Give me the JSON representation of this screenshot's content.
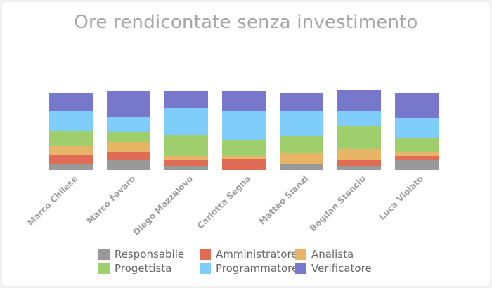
{
  "chart_data": {
    "type": "bar",
    "stacked": true,
    "title": "Ore rendicontate senza investimento",
    "categories": [
      "Marco Chilese",
      "Marco Favaro",
      "Diego Mazzalovo",
      "Carlotta Segna",
      "Matteo Slanzi",
      "Bogdan Stanciu",
      "Luca Violato"
    ],
    "series": [
      {
        "name": "Responsabile",
        "color": "#999999",
        "values": [
          4,
          7,
          3,
          0,
          4,
          3,
          7
        ]
      },
      {
        "name": "Amministratore",
        "color": "#e06c55",
        "values": [
          7,
          6,
          4,
          8,
          0,
          4,
          3
        ]
      },
      {
        "name": "Analista",
        "color": "#e8b465",
        "values": [
          6,
          7,
          3,
          2,
          8,
          8,
          3
        ]
      },
      {
        "name": "Progettista",
        "color": "#9fce6c",
        "values": [
          11,
          7,
          15,
          11,
          12,
          16,
          10
        ]
      },
      {
        "name": "Programmatore",
        "color": "#7fcdfb",
        "values": [
          14,
          11,
          19,
          21,
          18,
          11,
          14
        ]
      },
      {
        "name": "Verificatore",
        "color": "#7777cc",
        "values": [
          13,
          18,
          12,
          14,
          13,
          15,
          18
        ]
      }
    ],
    "grid": false,
    "legend_position": "bottom"
  }
}
